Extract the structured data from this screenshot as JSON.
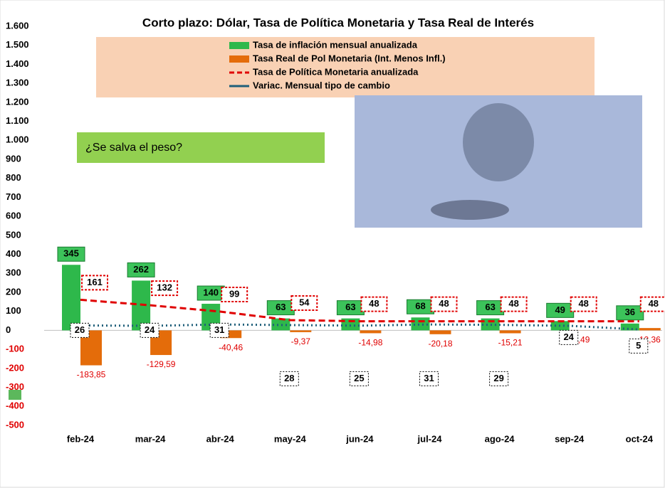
{
  "chart_data": {
    "type": "bar",
    "title": "Corto plazo: Dólar, Tasa de Política Monetaria y Tasa Real de Interés",
    "annotation": "¿Se salva el peso?",
    "categories": [
      "feb-24",
      "mar-24",
      "abr-24",
      "may-24",
      "jun-24",
      "jul-24",
      "ago-24",
      "sep-24",
      "oct-24"
    ],
    "series": [
      {
        "name": "Tasa de inflación mensual anualizada",
        "type": "bar",
        "color": "#2eb84b",
        "values": [
          345,
          262,
          140,
          63,
          63,
          68,
          63,
          49,
          36
        ]
      },
      {
        "name": "Tasa Real de Pol Monetaria (Int. Menos Infl.)",
        "type": "bar",
        "color": "#e46c0a",
        "values": [
          -183.85,
          -129.59,
          -40.46,
          -9.37,
          -14.98,
          -20.18,
          -15.21,
          -0.49,
          12.36
        ],
        "value_labels": [
          "-183,85",
          "-129,59",
          "-40,46",
          "-9,37",
          "-14,98",
          "-20,18",
          "-15,21",
          "-0,49",
          "12,36"
        ]
      },
      {
        "name": "Tasa de Política Monetaria anualizada",
        "type": "dashed-line",
        "color": "#e00000",
        "values": [
          161,
          132,
          99,
          54,
          48,
          48,
          48,
          48,
          48
        ]
      },
      {
        "name": "Variac. Mensual tipo de cambio",
        "type": "line",
        "color": "#1f5f7a",
        "values": [
          26,
          24,
          31,
          28,
          25,
          31,
          29,
          24,
          5
        ]
      }
    ],
    "ylim": [
      -500,
      1600
    ],
    "yticks": [
      {
        "value": 1600,
        "label": "1.600"
      },
      {
        "value": 1500,
        "label": "1.500"
      },
      {
        "value": 1400,
        "label": "1.400"
      },
      {
        "value": 1300,
        "label": "1.300"
      },
      {
        "value": 1200,
        "label": "1.200"
      },
      {
        "value": 1100,
        "label": "1.100"
      },
      {
        "value": 1000,
        "label": "1.000"
      },
      900,
      800,
      700,
      600,
      500,
      400,
      300,
      200,
      100,
      0,
      -100,
      -200,
      -300,
      -400,
      -500
    ],
    "negative_tick_color": "#e00000"
  }
}
